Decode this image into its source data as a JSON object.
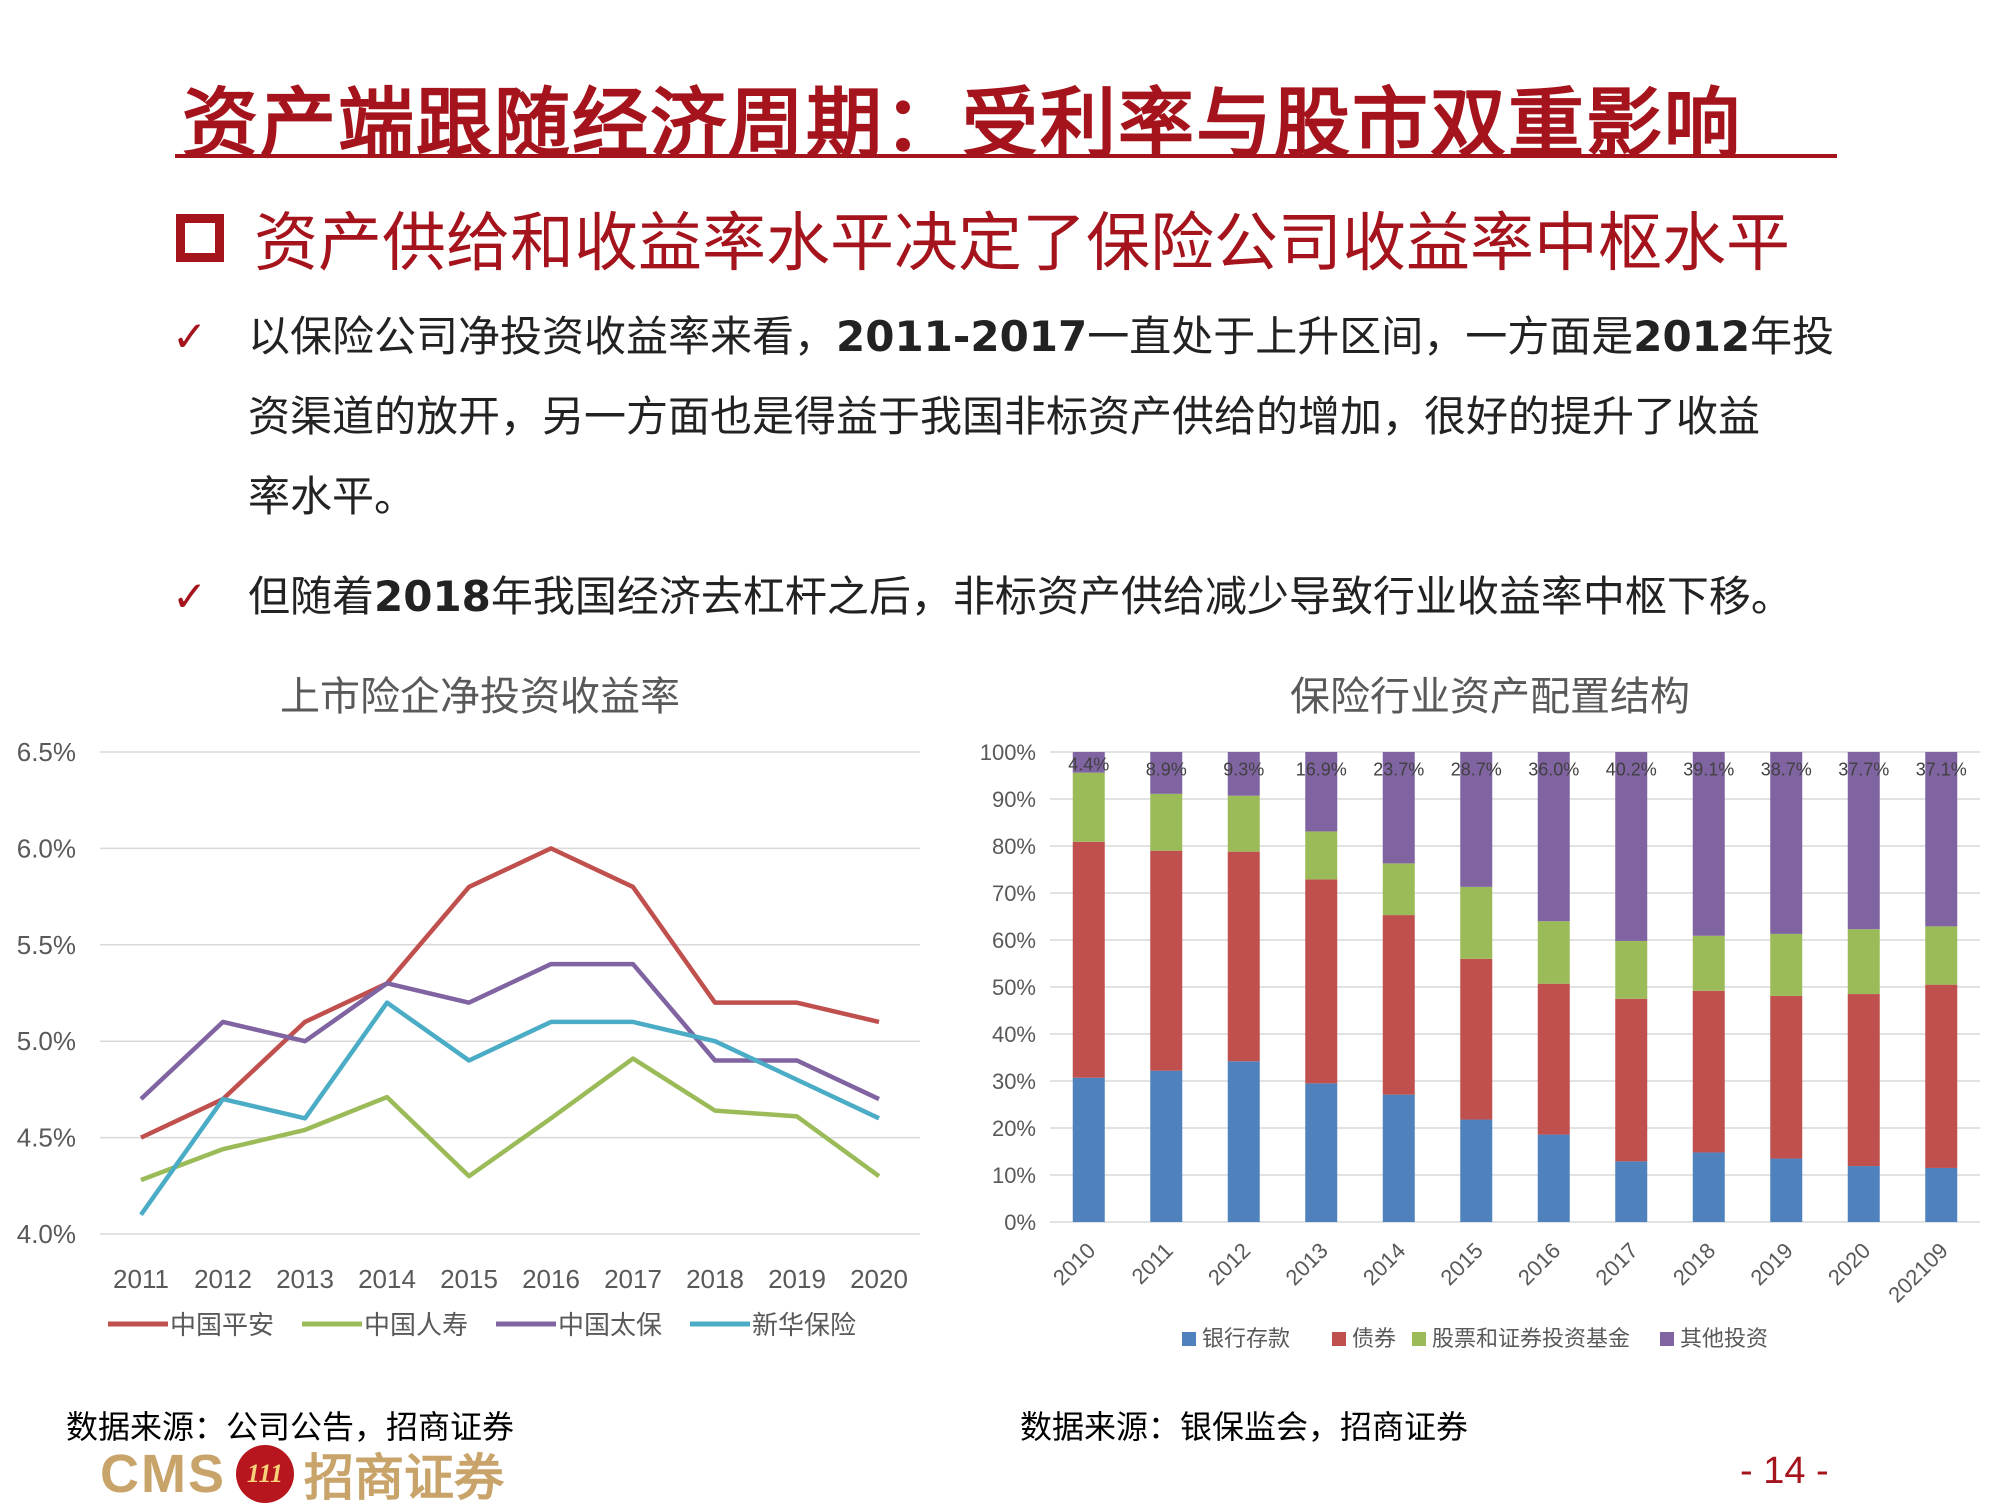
{
  "header": {
    "title": "资产端跟随经济周期：受利率与股市双重影响",
    "subtitle": "资产供给和收益率水平决定了保险公司收益率中枢水平"
  },
  "bullets": [
    {
      "line1_a": "以保险公司净投资收益率来看，",
      "line1_b": "2011-2017",
      "line1_c": "一直处于上升区间，一方面是",
      "line1_d": "2012",
      "line1_e": "年投",
      "line2": "资渠道的放开，另一方面也是得益于我国非标资产供给的增加，很好的提升了收益",
      "line3": "率水平。"
    },
    {
      "a": "但随着",
      "b": "2018",
      "c": "年我国经济去杠杆之后，非标资产供给减少导致行业收益率中枢下移。"
    }
  ],
  "check_mark": "✓",
  "left_chart_title": "上市险企净投资收益率",
  "right_chart_title": "保险行业资产配置结构",
  "source_left": "数据来源：公司公告，招商证券",
  "source_right": "数据来源：银保监会，招商证券",
  "logo": {
    "cms": "CMS",
    "badge": "111",
    "name": "招商证券"
  },
  "page_number": "- 14 -",
  "chart_data": [
    {
      "type": "line",
      "title": "上市险企净投资收益率",
      "x": [
        "2011",
        "2012",
        "2013",
        "2014",
        "2015",
        "2016",
        "2017",
        "2018",
        "2019",
        "2020"
      ],
      "ylim": [
        4.0,
        6.5
      ],
      "yticks": [
        "4.0%",
        "4.5%",
        "5.0%",
        "5.5%",
        "6.0%",
        "6.5%"
      ],
      "grid": true,
      "legend": "bottom",
      "series": [
        {
          "name": "中国平安",
          "color": "#c0504d",
          "values": [
            4.5,
            4.7,
            5.1,
            5.3,
            5.8,
            6.0,
            5.8,
            5.2,
            5.2,
            5.1
          ]
        },
        {
          "name": "中国人寿",
          "color": "#9bbb59",
          "values": [
            4.28,
            4.44,
            4.54,
            4.71,
            4.3,
            4.6,
            4.91,
            4.64,
            4.61,
            4.3
          ]
        },
        {
          "name": "中国太保",
          "color": "#8064a2",
          "values": [
            4.7,
            5.1,
            5.0,
            5.3,
            5.2,
            5.4,
            5.4,
            4.9,
            4.9,
            4.7
          ]
        },
        {
          "name": "新华保险",
          "color": "#4bacc6",
          "values": [
            4.1,
            4.7,
            4.6,
            5.2,
            4.9,
            5.1,
            5.1,
            5.0,
            4.8,
            4.6
          ]
        }
      ]
    },
    {
      "type": "bar",
      "stacked": true,
      "title": "保险行业资产配置结构",
      "categories": [
        "2010",
        "2011",
        "2012",
        "2013",
        "2014",
        "2015",
        "2016",
        "2017",
        "2018",
        "2019",
        "2020",
        "202109"
      ],
      "ylim": [
        0,
        100
      ],
      "yticks": [
        "0%",
        "10%",
        "20%",
        "30%",
        "40%",
        "50%",
        "60%",
        "70%",
        "80%",
        "90%",
        "100%"
      ],
      "legend": "bottom",
      "series": [
        {
          "name": "银行存款",
          "color": "#4f81bd",
          "values": [
            30.7,
            32.2,
            34.2,
            29.5,
            27.1,
            21.8,
            18.6,
            12.9,
            14.8,
            13.5,
            11.9,
            11.5
          ]
        },
        {
          "name": "债券",
          "color": "#c0504d",
          "values": [
            50.2,
            46.8,
            44.6,
            43.4,
            38.2,
            34.2,
            32.1,
            34.6,
            34.4,
            34.6,
            36.6,
            39.0
          ]
        },
        {
          "name": "股票和证券投资基金",
          "color": "#9bbb59",
          "values": [
            14.7,
            12.1,
            11.9,
            10.2,
            11.0,
            15.3,
            13.3,
            12.3,
            11.7,
            13.2,
            13.8,
            12.4
          ]
        },
        {
          "name": "其他投资",
          "color": "#8064a2",
          "values": [
            4.4,
            8.9,
            9.3,
            16.9,
            23.7,
            28.7,
            36.0,
            40.2,
            39.1,
            38.7,
            37.7,
            37.1
          ]
        }
      ],
      "data_labels": [
        "4.4%",
        "8.9%",
        "9.3%",
        "16.9%",
        "23.7%",
        "28.7%",
        "36.0%",
        "40.2%",
        "39.1%",
        "38.7%",
        "37.7%",
        "37.1%"
      ]
    }
  ]
}
